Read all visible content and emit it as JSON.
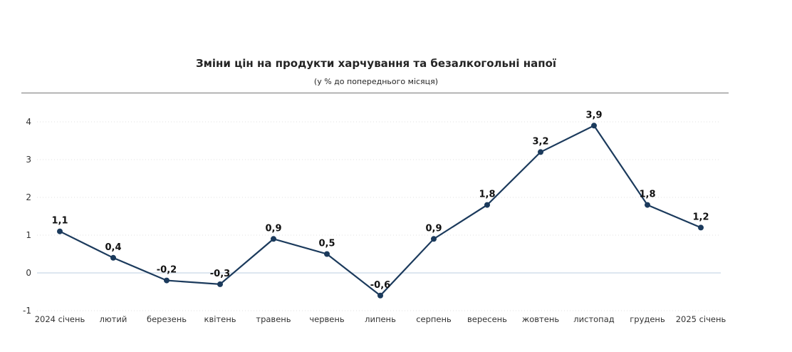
{
  "chart_data": {
    "type": "line",
    "title": "Зміни цін на продукти харчування та безалкогольні напої",
    "subtitle": "(у % до попереднього місяця)",
    "categories": [
      "2024 січень",
      "лютий",
      "березень",
      "квітень",
      "травень",
      "червень",
      "липень",
      "серпень",
      "вересень",
      "жовтень",
      "листопад",
      "грудень",
      "2025 січень"
    ],
    "series": [
      {
        "values": [
          1.1,
          0.4,
          -0.2,
          -0.3,
          0.9,
          0.5,
          -0.6,
          0.9,
          1.8,
          3.2,
          3.9,
          1.8,
          1.2
        ]
      }
    ],
    "data_labels": [
      "1,1",
      "0,4",
      "-0,2",
      "-0,3",
      "0,9",
      "0,5",
      "-0,6",
      "0,9",
      "1,8",
      "3,2",
      "3,9",
      "1,8",
      "1,2"
    ],
    "yticks": [
      -1,
      0,
      1,
      2,
      3,
      4
    ],
    "ylim": [
      -1,
      4
    ],
    "grid": "horizontal dotted",
    "legend": "none",
    "line_color": "#1b3a5c",
    "zero_line_color": "#dde6f0"
  }
}
